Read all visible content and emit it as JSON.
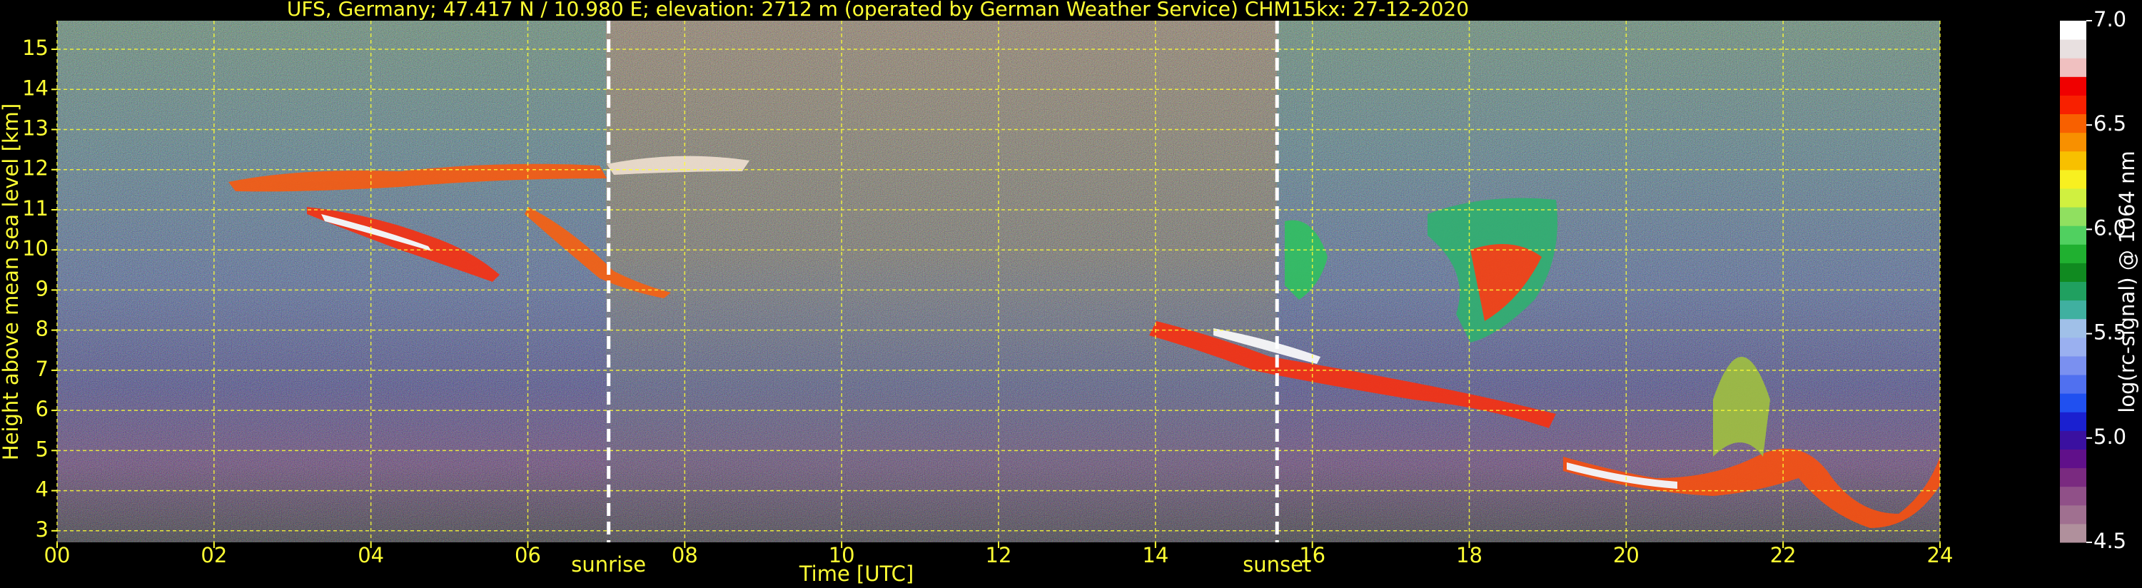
{
  "chart_data": {
    "type": "heatmap",
    "title": "UFS, Germany; 47.417 N / 10.980 E; elevation: 2712 m  (operated by German Weather Service)    CHM15kx: 27-12-2020",
    "x_label": "Time [UTC]",
    "y_label": "Height above mean sea level [km]",
    "xlim": [
      0,
      24
    ],
    "xticks": [
      {
        "value": 0,
        "label": "00"
      },
      {
        "value": 2,
        "label": "02"
      },
      {
        "value": 4,
        "label": "04"
      },
      {
        "value": 6,
        "label": "06"
      },
      {
        "value": 8,
        "label": "08"
      },
      {
        "value": 10,
        "label": "10"
      },
      {
        "value": 12,
        "label": "12"
      },
      {
        "value": 14,
        "label": "14"
      },
      {
        "value": 16,
        "label": "16"
      },
      {
        "value": 18,
        "label": "18"
      },
      {
        "value": 20,
        "label": "20"
      },
      {
        "value": 22,
        "label": "22"
      },
      {
        "value": 24,
        "label": "24"
      }
    ],
    "ylim": [
      2.712,
      15.712
    ],
    "yticks": [
      3,
      4,
      5,
      6,
      7,
      8,
      9,
      10,
      11,
      12,
      13,
      14,
      15
    ],
    "grid": true,
    "grid_color": "#ffff33",
    "annotations": [
      {
        "x": 7.03,
        "label": "sunrise"
      },
      {
        "x": 15.55,
        "label": "sunset"
      }
    ],
    "colorbar": {
      "label": "log(rc-signal) @ 1064 nm",
      "lim": [
        4.5,
        7.0
      ],
      "ticks": [
        {
          "value": 4.5,
          "label": "4.5"
        },
        {
          "value": 5.0,
          "label": "5.0"
        },
        {
          "value": 5.5,
          "label": "5.5"
        },
        {
          "value": 6.0,
          "label": "6.0"
        },
        {
          "value": 6.5,
          "label": "6.5"
        },
        {
          "value": 7.0,
          "label": "7.0"
        }
      ],
      "colors": [
        "#b0909c",
        "#a07090",
        "#905088",
        "#7a2a80",
        "#60108a",
        "#3a10a0",
        "#1a20d0",
        "#2050f0",
        "#5070f0",
        "#7a90f0",
        "#9ab0f0",
        "#a0c0e8",
        "#40b0a0",
        "#20a060",
        "#108a20",
        "#20b030",
        "#50d060",
        "#90e060",
        "#d0f040",
        "#f8f020",
        "#f8c000",
        "#f89000",
        "#f86000",
        "#f82000",
        "#f00000",
        "#f0c0c0",
        "#e8e0e0",
        "#ffffff"
      ]
    }
  }
}
